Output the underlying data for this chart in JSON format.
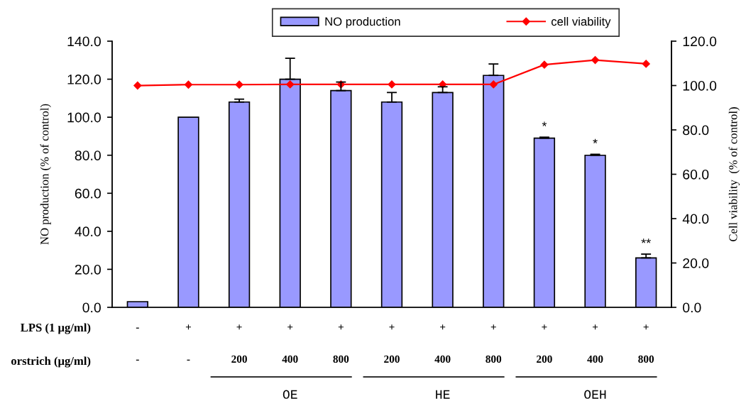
{
  "chart_data": {
    "type": "bar",
    "ylabel": "NO production (% of control)",
    "y2label": "Cell viability  (% of control)",
    "categories": [
      "-\n-",
      "+\n-",
      "+\n200",
      "+\n400",
      "+\n800",
      "+\n200",
      "+\n400",
      "+\n800",
      "+\n200",
      "+\n400",
      "+\n800"
    ],
    "series": [
      {
        "name": "NO production",
        "color": "#9999ff",
        "values": [
          3,
          100,
          108,
          120,
          114,
          108,
          113,
          122,
          89,
          80,
          26
        ],
        "errors": [
          null,
          null,
          [
            108,
            109.5
          ],
          [
            120,
            131
          ],
          [
            114,
            118.5
          ],
          [
            108,
            113
          ],
          [
            113,
            116
          ],
          [
            122,
            128
          ],
          [
            89,
            89.5
          ],
          [
            80,
            80.5
          ],
          [
            26,
            28
          ]
        ],
        "value_labels": [
          null,
          null,
          null,
          null,
          null,
          null,
          null,
          null,
          "*",
          "*",
          "**"
        ]
      },
      {
        "name": "cell viability",
        "type": "line",
        "axis": "y2",
        "color": "#ff0000",
        "values": [
          100.0,
          100.4,
          100.4,
          100.5,
          100.5,
          100.5,
          100.5,
          100.5,
          109.4,
          111.5,
          109.8
        ]
      }
    ],
    "ylim": [
      0,
      140
    ],
    "yticks": [
      {
        "value": 0,
        "label": "0.0"
      },
      {
        "value": 20,
        "label": "20.0"
      },
      {
        "value": 40,
        "label": "40.0"
      },
      {
        "value": 60,
        "label": "60.0"
      },
      {
        "value": 80,
        "label": "80.0"
      },
      {
        "value": 100,
        "label": "100.0"
      },
      {
        "value": 120,
        "label": "120.0"
      },
      {
        "value": 140,
        "label": "140.0"
      }
    ],
    "y2lim": [
      0,
      120
    ],
    "y2ticks": [
      {
        "value": 0,
        "label": "0.0"
      },
      {
        "value": 20,
        "label": "20.0"
      },
      {
        "value": 40,
        "label": "40.0"
      },
      {
        "value": 60,
        "label": "60.0"
      },
      {
        "value": 80,
        "label": "80.0"
      },
      {
        "value": 100,
        "label": "100.0"
      },
      {
        "value": 120,
        "label": "120.0"
      }
    ],
    "marker": "diamond",
    "line_style": "solid",
    "legend": "top",
    "annotations": [
      "LPS (1 μg/ml)",
      "orstrich (μg/ml)",
      "OE",
      "HE",
      "OEH"
    ]
  }
}
